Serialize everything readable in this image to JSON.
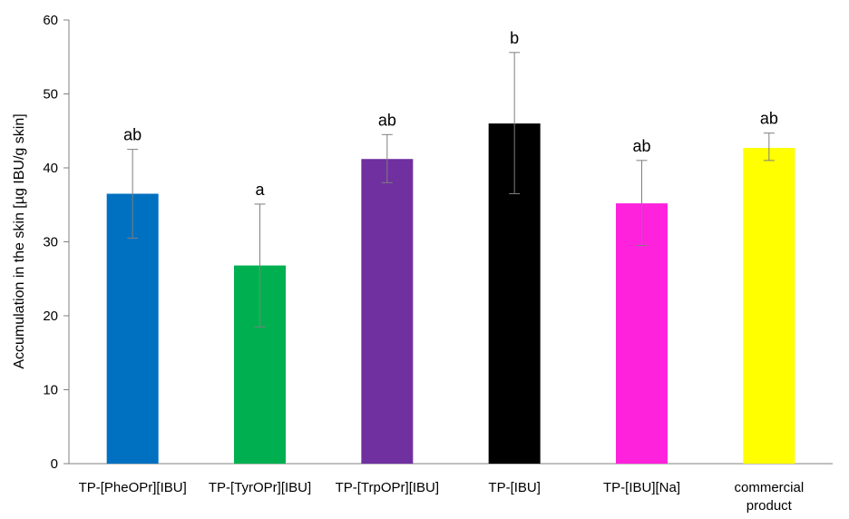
{
  "chart_data": {
    "type": "bar",
    "title": "",
    "xlabel": "",
    "ylabel": "Accumulation in the skin [µg IBU/g skin]",
    "ylim": [
      0,
      60
    ],
    "yticks": [
      0,
      10,
      20,
      30,
      40,
      50,
      60
    ],
    "grid": false,
    "legend": "none",
    "categories": [
      [
        "TP-[PheOPr][IBU]"
      ],
      [
        "TP-[TyrOPr][IBU]"
      ],
      [
        "TP-[TrpOPr][IBU]"
      ],
      [
        "TP-[IBU]"
      ],
      [
        "TP-[IBU][Na]"
      ],
      [
        "commercial",
        "product"
      ]
    ],
    "values": [
      36.5,
      26.8,
      41.2,
      46.0,
      35.2,
      42.7
    ],
    "error_low": [
      30.5,
      18.5,
      38.0,
      36.5,
      29.5,
      41.0
    ],
    "error_high": [
      42.5,
      35.1,
      44.5,
      55.6,
      41.0,
      44.7
    ],
    "significance": [
      "ab",
      "a",
      "ab",
      "b",
      "ab",
      "ab"
    ],
    "colors": [
      "#0070C0",
      "#00B050",
      "#7030A0",
      "#000000",
      "#FF22DD",
      "#FFFF00"
    ]
  }
}
